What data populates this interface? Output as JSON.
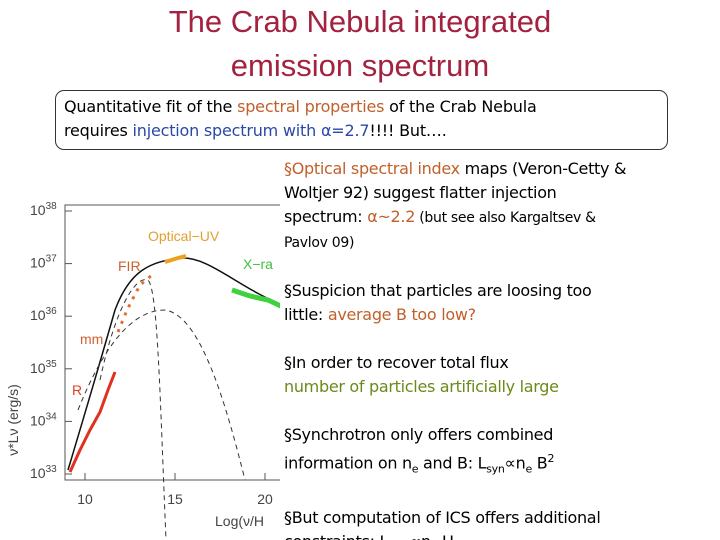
{
  "title": [
    "The Crab Nebula integrated",
    "emission spectrum"
  ],
  "box": {
    "lines": [
      [
        {
          "text": "Quantitative fit of the "
        },
        {
          "text": "spectral properties",
          "color": "#c0602a"
        },
        {
          "text": " of the Crab Nebula"
        }
      ],
      [
        {
          "text": "requires "
        },
        {
          "text": "injection spectrum with α=2.7",
          "color": "#2a48a8"
        },
        {
          "text": "!!!! But…."
        }
      ]
    ]
  },
  "bullets": [
    [
      [
        {
          "text": "§Optical spectral index",
          "color": "#c0602a"
        },
        {
          "text": " maps (Veron-Cetty &"
        }
      ],
      [
        {
          "text": "Woltjer 92) suggest flatter injection"
        }
      ],
      [
        {
          "text": "spectrum: "
        },
        {
          "text": "α~2.2",
          "color": "#c0602a"
        },
        {
          "text": " (but see also Kargaltsev &",
          "small": true
        }
      ],
      [
        {
          "text": "Pavlov 09)",
          "small": true
        }
      ]
    ],
    [
      [
        {
          "text": "§Suspicion that particles are loosing too"
        }
      ],
      [
        {
          "text": "little: "
        },
        {
          "text": "average B too low?",
          "color": "#c0602a"
        }
      ]
    ],
    [
      [
        {
          "text": "§In order to recover total flux"
        }
      ],
      [
        {
          "text": "number of particles artificially large",
          "color": "#6a8a1a"
        }
      ]
    ],
    [
      [
        {
          "text": "§Synchrotron only offers combined"
        }
      ],
      [
        {
          "text": "information on n"
        },
        {
          "text": "e",
          "sub": true
        },
        {
          "text": " and B: L"
        },
        {
          "text": "syn",
          "sub": true
        },
        {
          "text": "∝n"
        },
        {
          "text": "e",
          "sub": true
        },
        {
          "text": " B"
        },
        {
          "text": "2",
          "sup": true
        }
      ]
    ],
    [
      [
        {
          "text": "§But computation of ICS offers additional"
        }
      ],
      [
        {
          "text": "constraints: L"
        },
        {
          "text": "ICS",
          "sub": true
        },
        {
          "text": " ∝n"
        },
        {
          "text": "e",
          "sub": true
        },
        {
          "text": " U"
        },
        {
          "text": "ph",
          "sub": true
        }
      ]
    ]
  ],
  "figure": {
    "y_ticks": [
      {
        "base": "10",
        "exp": "38"
      },
      {
        "base": "10",
        "exp": "37"
      },
      {
        "base": "10",
        "exp": "36"
      },
      {
        "base": "10",
        "exp": "35"
      },
      {
        "base": "10",
        "exp": "34"
      },
      {
        "base": "10",
        "exp": "33"
      }
    ],
    "x_ticks": [
      "10",
      "15",
      "20"
    ],
    "y_label": "ν*Lν (erg/s)",
    "x_label": "Log(ν/H",
    "labels": [
      {
        "text": "Optical−UV",
        "color": "#e0a030"
      },
      {
        "text": "FIR",
        "color": "#d06030"
      },
      {
        "text": "X−ra",
        "color": "#40c040"
      },
      {
        "text": "mm",
        "color": "#d06030"
      },
      {
        "text": "R",
        "color": "#e04020"
      }
    ]
  }
}
